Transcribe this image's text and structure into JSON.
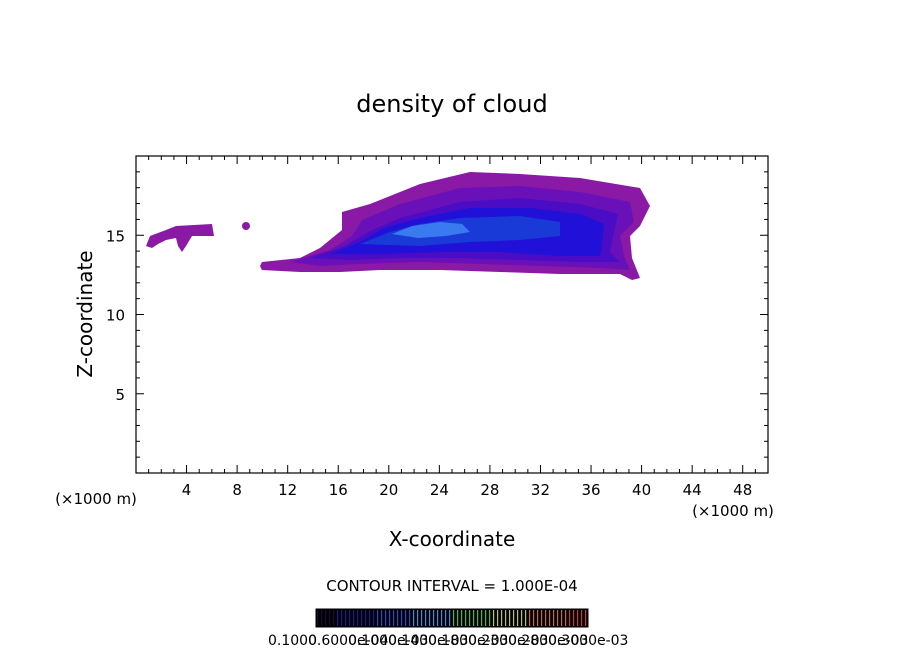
{
  "chart_data": {
    "type": "heatmap",
    "title": "density of cloud",
    "xlabel": "X-coordinate",
    "ylabel": "Z-coordinate",
    "x_unit": "(×1000 m)",
    "z_unit": "(×1000 m)",
    "xlim": [
      0,
      50
    ],
    "ylim": [
      0,
      20
    ],
    "x_ticks": [
      4,
      8,
      12,
      16,
      20,
      24,
      28,
      32,
      36,
      40,
      44,
      48
    ],
    "y_ticks": [
      5,
      10,
      15
    ],
    "contour_interval_label": "CONTOUR INTERVAL = 1.000E-04",
    "colorbar_labels": [
      "0.1000",
      "0.6000e-04",
      "0.1000e-03",
      "0.1400e-03",
      "0.1800e-03",
      "0.2300e-03",
      "0.2800e-03",
      "0.3000e-03"
    ],
    "colorbar_colors": [
      "#1a0a3a",
      "#1a1a9a",
      "#2a4ad0",
      "#3a8ae8",
      "#4ab84a",
      "#b8c84a",
      "#c86a3a",
      "#c83a3a"
    ],
    "regions": [
      {
        "name": "main-cloud",
        "xmin": 10,
        "xmax": 40.5,
        "zmin": 12.3,
        "zmax": 18.8,
        "peak_x": 22,
        "peak_z": 15.5,
        "peak_value": 0.00025
      },
      {
        "name": "left-fragment",
        "xmin": 1.8,
        "xmax": 6.0,
        "zmin": 14.0,
        "zmax": 15.5,
        "peak_value": 2e-05
      },
      {
        "name": "small-blob",
        "xmin": 8.6,
        "xmax": 8.9,
        "zmin": 15.5,
        "zmax": 15.8,
        "peak_value": 1e-05
      }
    ],
    "colors": {
      "outer": "#8a1aa6",
      "mid_outer": "#6a10b8",
      "mid": "#4a0cc4",
      "inner": "#2010d8",
      "core": "#1a3ad8",
      "peak": "#3a7af0"
    }
  }
}
